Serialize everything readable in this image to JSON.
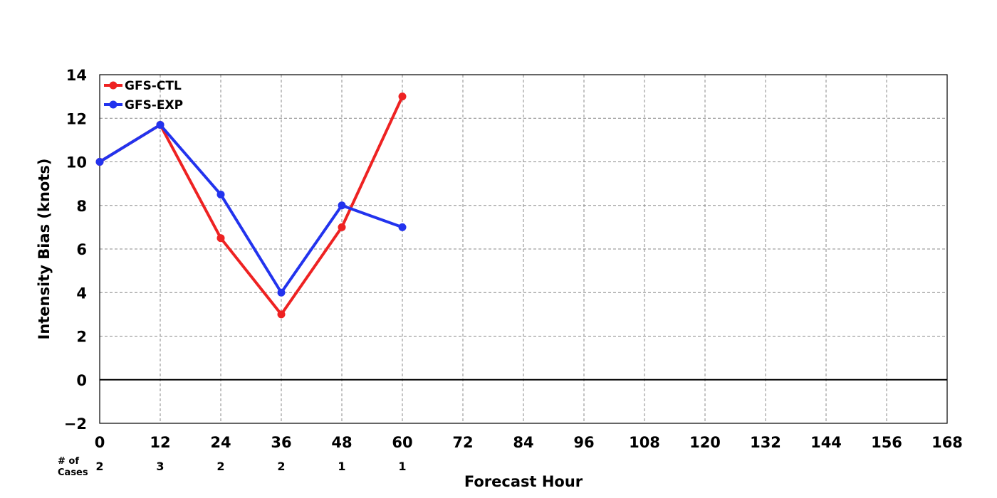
{
  "chart_data": {
    "type": "line",
    "title": "",
    "xlabel": "Forecast Hour",
    "ylabel": "Intensity Bias (knots)",
    "xlim": [
      0,
      168
    ],
    "ylim": [
      -2,
      14
    ],
    "x_ticks": [
      0,
      12,
      24,
      36,
      48,
      60,
      72,
      84,
      96,
      108,
      120,
      132,
      144,
      156,
      168
    ],
    "y_ticks": [
      -2,
      0,
      2,
      4,
      6,
      8,
      10,
      12,
      14
    ],
    "y_tick_labels": [
      "−2",
      "0",
      "2",
      "4",
      "6",
      "8",
      "10",
      "12",
      "14"
    ],
    "grid": true,
    "legend_position": "top-left",
    "zero_line": true,
    "series": [
      {
        "name": "GFS-CTL",
        "color": "#ee2222",
        "x": [
          0,
          12,
          24,
          36,
          48,
          60
        ],
        "values": [
          10.0,
          11.7,
          6.5,
          3.0,
          7.0,
          13.0
        ]
      },
      {
        "name": "GFS-EXP",
        "color": "#2233ee",
        "x": [
          0,
          12,
          24,
          36,
          48,
          60
        ],
        "values": [
          10.0,
          11.7,
          8.5,
          4.0,
          8.0,
          7.0
        ]
      }
    ],
    "cases": {
      "label_line1": "# of",
      "label_line2": "Cases",
      "x": [
        0,
        12,
        24,
        36,
        48,
        60
      ],
      "counts": [
        "2",
        "3",
        "2",
        "2",
        "1",
        "1"
      ]
    }
  }
}
